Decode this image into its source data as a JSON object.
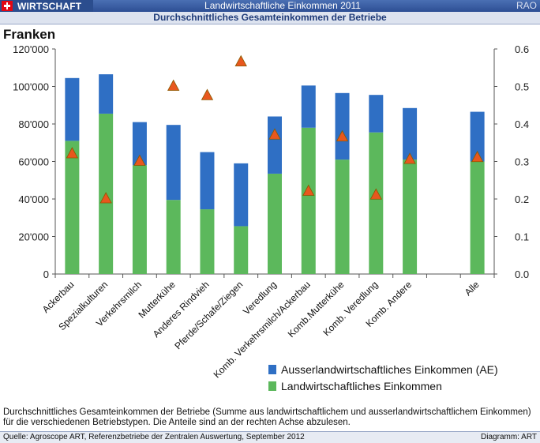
{
  "header": {
    "badge": "WIRTSCHAFT",
    "title": "Landwirtschaftliche Einkommen 2011",
    "right": "RAO"
  },
  "subtitle": "Durchschnittliches Gesamteinkommen der Betriebe",
  "colors": {
    "ae": "#2f6fc4",
    "landw": "#5cb85c",
    "marker": "#e8571e"
  },
  "chart_data": {
    "type": "bar",
    "stacked": true,
    "units_label": "Franken",
    "categories": [
      "Ackerbau",
      "Spezialkulturen",
      "Verkehrsmilch",
      "Mutterkühe",
      "Anderes Rindvieh",
      "Pferde/Schafe/Ziegen",
      "Veredlung",
      "Komb. Verkehrsmilch/Ackerbau",
      "Komb.Mutterkühe",
      "Komb. Veredlung",
      "Komb. Andere",
      "",
      "Alle"
    ],
    "series": [
      {
        "name": "Landwirtschaftliches Einkommen",
        "values": [
          71000,
          85500,
          58000,
          39500,
          34500,
          25500,
          53500,
          78000,
          61000,
          75500,
          61000,
          null,
          60000
        ]
      },
      {
        "name": "Ausserlandwirtschaftliches Einkommen (AE)",
        "values": [
          33500,
          21000,
          23000,
          40000,
          30500,
          33500,
          30500,
          22500,
          35500,
          20000,
          27500,
          null,
          26500
        ]
      }
    ],
    "share_markers": [
      0.32,
      0.2,
      0.3,
      0.5,
      0.475,
      0.565,
      0.37,
      0.22,
      0.365,
      0.21,
      0.305,
      null,
      0.31
    ],
    "ylim": [
      0,
      120000
    ],
    "yticks": [
      "0",
      "20'000",
      "40'000",
      "60'000",
      "80'000",
      "100'000",
      "120'000"
    ],
    "y2lim": [
      0,
      0.6
    ],
    "y2ticks": [
      "0.0",
      "0.1",
      "0.2",
      "0.3",
      "0.4",
      "0.5",
      "0.6"
    ],
    "legend": [
      "Ausserlandwirtschaftliches Einkommen (AE)",
      "Landwirtschaftliches Einkommen"
    ]
  },
  "caption": "Durchschnittliches Gesamteinkommen der Betriebe (Summe aus landwirtschaftlichem und ausserlandwirtschaftlichem Einkommen) für die verschiedenen Betriebstypen. Die Anteile sind an der rechten Achse abzulesen.",
  "footer": {
    "source": "Quelle: Agroscope ART, Referenzbetriebe der  Zentralen Auswertung, September 2012",
    "diagram": "Diagramm: ART"
  }
}
